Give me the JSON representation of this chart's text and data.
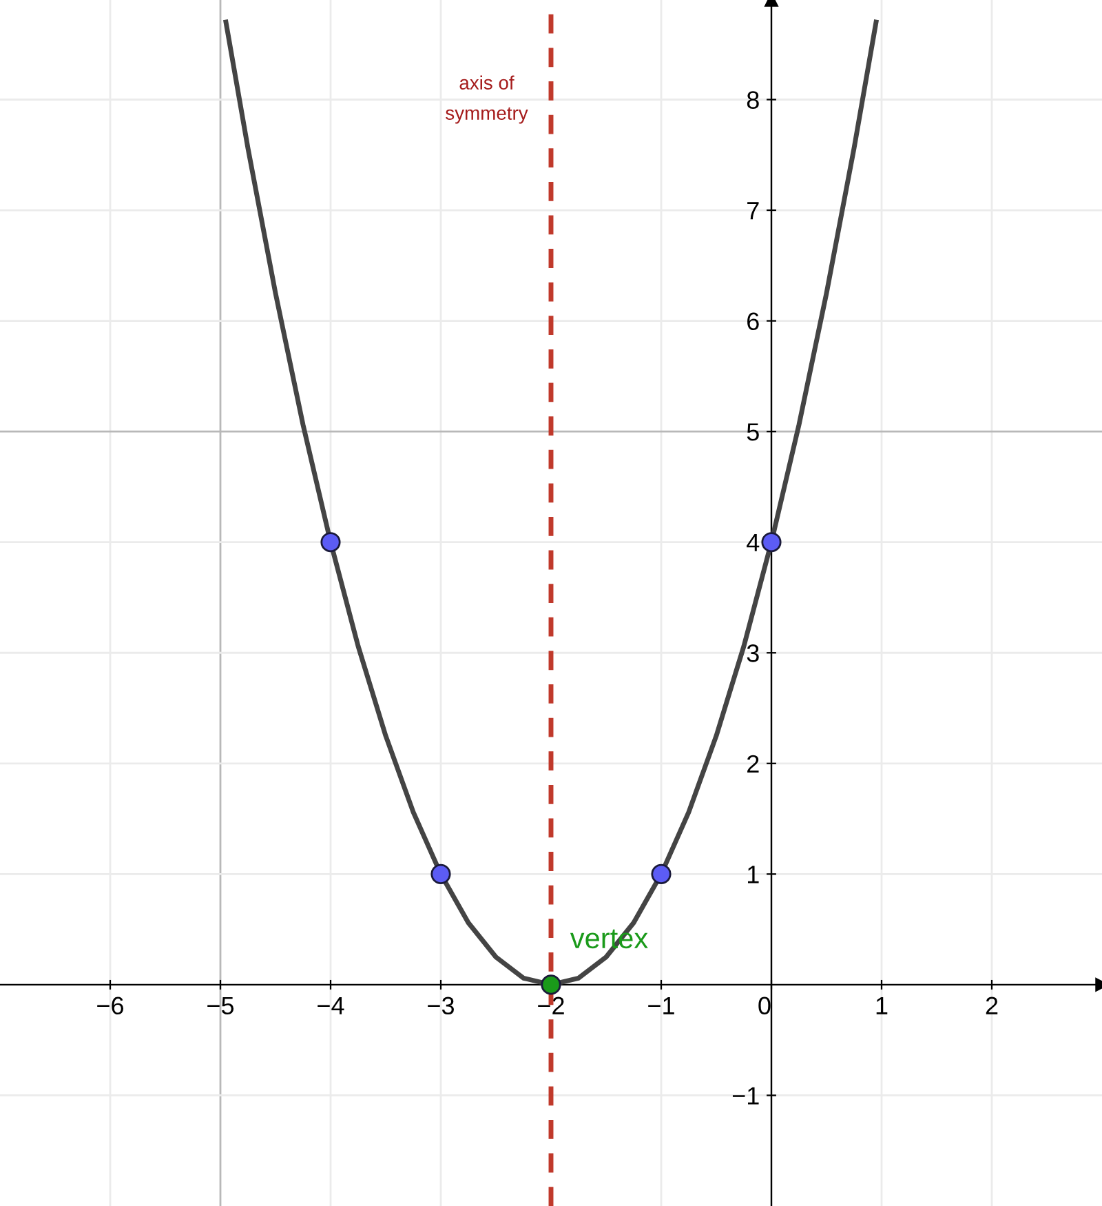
{
  "chart_data": {
    "type": "line",
    "series": [
      {
        "type": "line",
        "color": "#444444",
        "marker": "none",
        "x": [
          -4.95,
          -4.75,
          -4.5,
          -4.25,
          -4.0,
          -3.75,
          -3.5,
          -3.25,
          -3.0,
          -2.75,
          -2.5,
          -2.25,
          -2.0,
          -1.75,
          -1.5,
          -1.25,
          -1.0,
          -0.75,
          -0.5,
          -0.25,
          0.0,
          0.25,
          0.5,
          0.75,
          0.95
        ],
        "values": [
          8.7,
          7.56,
          6.25,
          5.06,
          4.0,
          3.06,
          2.25,
          1.56,
          1.0,
          0.56,
          0.25,
          0.06,
          0.0,
          0.06,
          0.25,
          0.56,
          1.0,
          1.56,
          2.25,
          3.06,
          4.0,
          5.06,
          6.25,
          7.56,
          8.7
        ]
      },
      {
        "type": "scatter",
        "color": "#5c5cf5",
        "marker": "circle",
        "x": [
          -4,
          -3,
          -1,
          0
        ],
        "values": [
          4,
          1,
          1,
          4
        ]
      },
      {
        "type": "scatter",
        "color": "#1a9a1a",
        "marker": "circle",
        "x": [
          -2
        ],
        "values": [
          0
        ]
      }
    ],
    "xlim": [
      -7,
      3
    ],
    "ylim": [
      -2,
      8.9
    ],
    "xticks": [
      -6,
      -5,
      -4,
      -3,
      -2,
      -1,
      {
        "value": 0,
        "label": "0"
      },
      1,
      2
    ],
    "yticks": [
      -1,
      1,
      2,
      3,
      4,
      5,
      6,
      7,
      8
    ],
    "grid": true,
    "ref_lines": [
      {
        "axis": "x",
        "value": -2,
        "label": null,
        "color": "#c0392b",
        "line_style": "dashed"
      }
    ],
    "annotations": [
      {
        "text": "vertex",
        "x": -2,
        "y": 0
      },
      {
        "text": "axis of\nsymmetry",
        "x": -2,
        "y": 8
      }
    ]
  }
}
